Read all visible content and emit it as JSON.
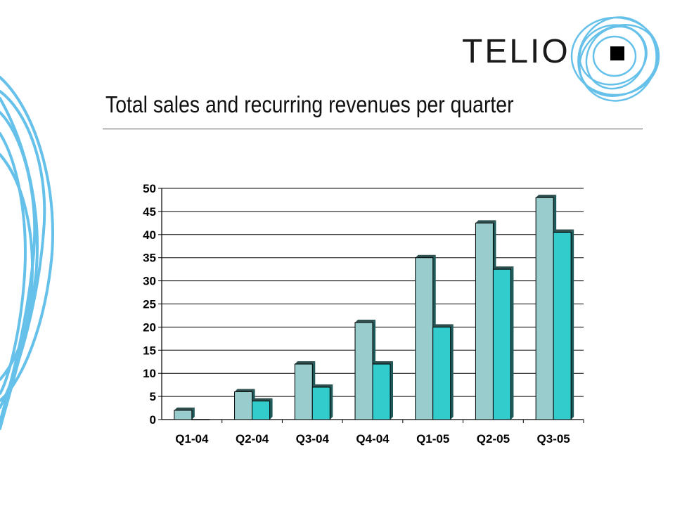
{
  "logo": {
    "text": "TELIO"
  },
  "header": {
    "title": "Total sales and recurring revenues per quarter"
  },
  "colors": {
    "series1": "#99cccc",
    "series2": "#33cccc",
    "decor": "#66c1ea",
    "gridline": "#000000"
  },
  "chart_data": {
    "type": "bar",
    "title": "",
    "xlabel": "",
    "ylabel": "",
    "ylim": [
      0,
      50
    ],
    "yticks": [
      0,
      5,
      10,
      15,
      20,
      25,
      30,
      35,
      40,
      45,
      50
    ],
    "grid": true,
    "legend": "none",
    "categories": [
      "Q1-04",
      "Q2-04",
      "Q3-04",
      "Q4-04",
      "Q1-05",
      "Q2-05",
      "Q3-05"
    ],
    "series": [
      {
        "values": [
          2,
          6,
          12,
          21,
          35,
          42.5,
          48
        ]
      },
      {
        "values": [
          0,
          4,
          7,
          12,
          20,
          32.5,
          40.5
        ]
      }
    ]
  }
}
